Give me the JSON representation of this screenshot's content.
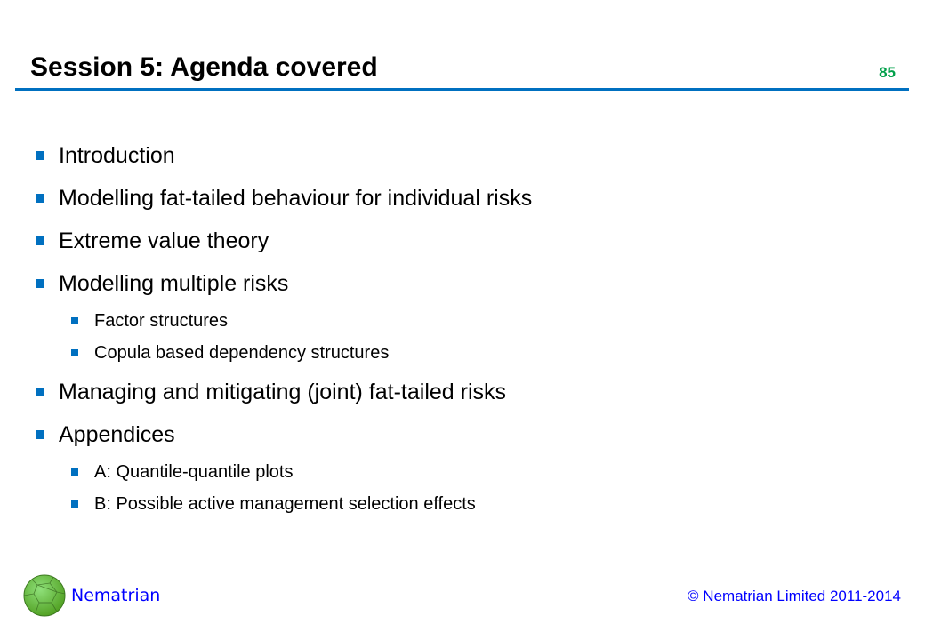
{
  "header": {
    "title": "Session 5: Agenda covered",
    "page_number": "85"
  },
  "agenda": [
    {
      "level": 1,
      "text": "Introduction"
    },
    {
      "level": 1,
      "text": "Modelling fat-tailed behaviour for individual risks"
    },
    {
      "level": 1,
      "text": "Extreme value theory"
    },
    {
      "level": 1,
      "text": "Modelling multiple risks"
    },
    {
      "level": 2,
      "text": "Factor structures"
    },
    {
      "level": 2,
      "text": "Copula based dependency structures"
    },
    {
      "level": 1,
      "text": "Managing and mitigating (joint) fat-tailed risks"
    },
    {
      "level": 1,
      "text": "Appendices"
    },
    {
      "level": 2,
      "text": "A: Quantile-quantile plots"
    },
    {
      "level": 2,
      "text": "B: Possible active management selection effects"
    }
  ],
  "footer": {
    "brand": "Nematrian",
    "copyright": "© Nematrian Limited 2011-2014",
    "logo_icon": "green-polyhedron-logo"
  },
  "colors": {
    "accent": "#0070c0",
    "page_number": "#00a04a",
    "footer_text": "#0000ff"
  }
}
